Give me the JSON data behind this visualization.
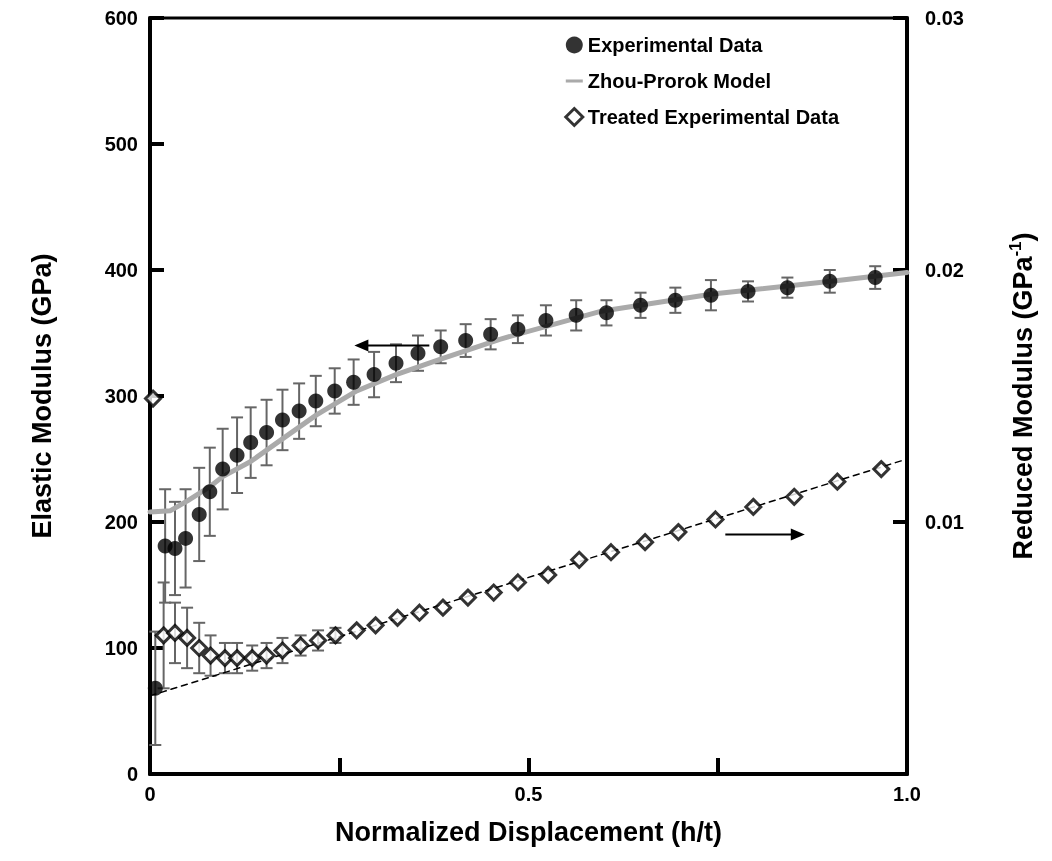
{
  "chart_data": {
    "type": "scatter",
    "xlabel": "Normalized Displacement (h/t)",
    "ylabel": "Elastic Modulus (GPa)",
    "y2label": "Reduced Modulus (GPa$^{-1}$)",
    "xlim": [
      0,
      1
    ],
    "xticks": [
      0,
      {
        "value": 0.25,
        "label": null
      },
      0.5,
      {
        "value": 0.75,
        "label": null
      },
      {
        "value": 1,
        "label": "1.0"
      }
    ],
    "ylim": [
      0,
      600
    ],
    "yticks": [
      0,
      100,
      200,
      300,
      400,
      500,
      600
    ],
    "y2lim": [
      0,
      0.03
    ],
    "y2ticks": [
      0.01,
      0.02,
      0.03
    ],
    "grid": false,
    "legend": "top right",
    "series": [
      {
        "name": "Experimental Data",
        "type": "scatter",
        "marker": "circle",
        "color": "#000000",
        "x": [
          0.007,
          0.02,
          0.033,
          0.047,
          0.065,
          0.079,
          0.096,
          0.115,
          0.133,
          0.154,
          0.175,
          0.197,
          0.219,
          0.244,
          0.269,
          0.296,
          0.325,
          0.354,
          0.384,
          0.417,
          0.45,
          0.486,
          0.523,
          0.563,
          0.603,
          0.648,
          0.694,
          0.741,
          0.79,
          0.842,
          0.898,
          0.958
        ],
        "values": [
          68,
          181,
          179,
          187,
          206,
          224,
          242,
          253,
          263,
          271,
          281,
          288,
          296,
          304,
          311,
          317,
          326,
          334,
          339,
          344,
          349,
          353,
          360,
          364,
          366,
          372,
          376,
          380,
          383,
          386,
          391,
          394
        ],
        "errors": [
          45,
          45,
          37,
          39,
          37,
          35,
          32,
          30,
          28,
          26,
          24,
          22,
          20,
          18,
          18,
          18,
          15,
          14,
          13,
          13,
          12,
          11,
          12,
          12,
          10,
          10,
          10,
          12,
          8,
          8,
          9,
          9
        ]
      },
      {
        "name": "Zhou-Prorok Model",
        "type": "line",
        "marker": "none",
        "line_style": "solid",
        "color": "#aaaaaa",
        "x": [
          0,
          0.027,
          0.05,
          0.079,
          0.096,
          0.133,
          0.175,
          0.22,
          0.273,
          0.325,
          0.383,
          0.462,
          0.594,
          0.743,
          0.9,
          1.0
        ],
        "values": [
          208,
          209,
          217,
          228,
          236,
          248,
          266,
          285,
          304,
          317,
          329,
          345,
          367,
          381,
          391,
          398
        ]
      },
      {
        "name": "Treated Experimental Data",
        "type": "scatter",
        "axis": "y2",
        "marker": "diamond",
        "color": "#000000",
        "x": [
          0.004,
          0.018,
          0.033,
          0.049,
          0.065,
          0.08,
          0.099,
          0.115,
          0.135,
          0.154,
          0.175,
          0.199,
          0.222,
          0.245,
          0.273,
          0.298,
          0.327,
          0.356,
          0.387,
          0.42,
          0.454,
          0.486,
          0.526,
          0.567,
          0.609,
          0.654,
          0.698,
          0.747,
          0.797,
          0.851,
          0.908,
          0.966
        ],
        "values": [
          0.0149,
          0.0055,
          0.0056,
          0.0054,
          0.005,
          0.0047,
          0.0046,
          0.0046,
          0.0046,
          0.0047,
          0.0049,
          0.0051,
          0.0053,
          0.0055,
          0.0057,
          0.0059,
          0.0062,
          0.0064,
          0.0066,
          0.007,
          0.0072,
          0.0076,
          0.0079,
          0.0085,
          0.0088,
          0.0092,
          0.0096,
          0.0101,
          0.0106,
          0.011,
          0.0116,
          0.0121
        ],
        "errors": [
          null,
          0.0021,
          0.0012,
          0.0012,
          0.001,
          0.0008,
          0.0006,
          0.0006,
          0.0005,
          0.0005,
          0.0005,
          0.0004,
          0.0004,
          0.0003,
          null,
          null,
          null,
          null,
          null,
          null,
          null,
          null,
          null,
          null,
          null,
          null,
          null,
          null,
          null,
          null,
          null,
          null
        ]
      },
      {
        "type": "line",
        "axis": "y2",
        "marker": "none",
        "line_style": "dashed",
        "color": "#000000",
        "x": [
          0,
          1
        ],
        "values": [
          0.0031,
          0.0125
        ]
      }
    ]
  }
}
